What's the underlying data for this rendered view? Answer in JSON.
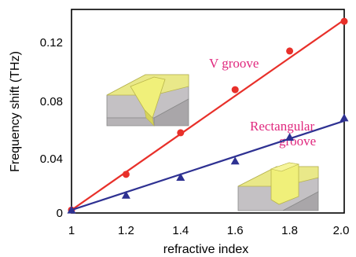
{
  "chart_data": {
    "type": "scatter",
    "title": "",
    "xlabel": "refractive index",
    "ylabel": "Frequency shift (THz)",
    "xlim": [
      1.0,
      2.0
    ],
    "ylim": [
      -0.002,
      0.135
    ],
    "x_ticks": [
      "1",
      "1.2",
      "1.4",
      "1.6",
      "1.8",
      "2.0"
    ],
    "y_ticks": [
      "0",
      "0.04",
      "0.08",
      "0.12"
    ],
    "grid": false,
    "legend": "none",
    "series": [
      {
        "name": "V groove",
        "color": "#e8302a",
        "label_color": "#e0287e",
        "marker": "circle",
        "x": [
          1.0,
          1.2,
          1.4,
          1.6,
          1.8,
          2.0
        ],
        "y": [
          0.0,
          0.024,
          0.052,
          0.081,
          0.107,
          0.127
        ],
        "fit": [
          [
            1.0,
            0.0
          ],
          [
            2.0,
            0.128
          ]
        ]
      },
      {
        "name": "Rectangular groove",
        "color": "#2e3192",
        "label_color": "#e0287e",
        "marker": "triangle",
        "x": [
          1.0,
          1.2,
          1.4,
          1.6,
          1.8,
          2.0
        ],
        "y": [
          0.0,
          0.01,
          0.022,
          0.033,
          0.049,
          0.062
        ],
        "fit": [
          [
            1.0,
            0.0
          ],
          [
            2.0,
            0.06
          ]
        ]
      }
    ],
    "labels": {
      "v_groove": "V groove",
      "rect_line1": "Rectangular",
      "rect_line2": "groove"
    },
    "insets": [
      {
        "depicts": "box-with-v-groove-inset"
      },
      {
        "depicts": "box-with-rectangular-groove-inset"
      }
    ]
  }
}
